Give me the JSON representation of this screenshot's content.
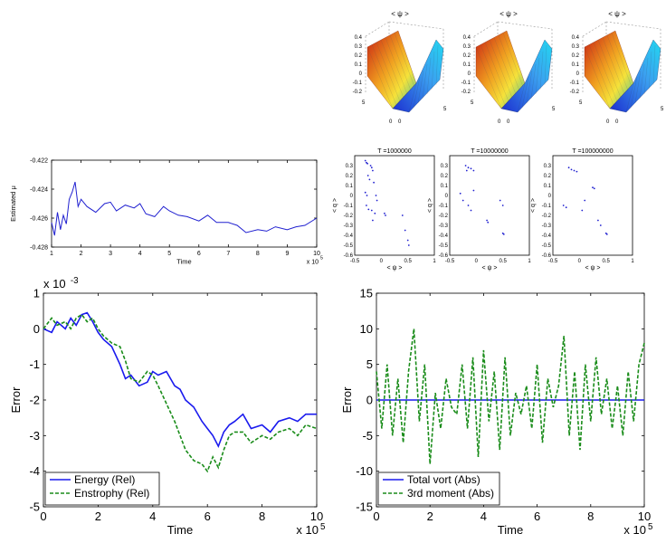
{
  "chart_data": [
    {
      "id": "surface_plots",
      "type": "surface",
      "panels": [
        {
          "title": "< ψ >",
          "z_ticks": [
            "0.4",
            "0.3",
            "0.2",
            "0.1",
            "0",
            "-0.1",
            "-0.2"
          ],
          "x_ticks": [
            "0",
            "5"
          ],
          "y_ticks": [
            "0",
            "5"
          ]
        },
        {
          "title": "< ψ >",
          "z_ticks": [
            "0.4",
            "0.3",
            "0.2",
            "0.1",
            "0",
            "-0.1",
            "-0.2"
          ],
          "x_ticks": [
            "0",
            "5"
          ],
          "y_ticks": [
            "0",
            "5"
          ]
        },
        {
          "title": "< ψ >",
          "z_ticks": [
            "0.4",
            "0.3",
            "0.2",
            "0.1",
            "0",
            "-0.1",
            "-0.2"
          ],
          "x_ticks": [
            "0",
            "5"
          ],
          "y_ticks": [
            "0",
            "5"
          ]
        }
      ],
      "colors": {
        "high": "#c81e12",
        "mid": "#f5e23a",
        "low": "#1c2fd0",
        "peak": "#23d7f0"
      }
    },
    {
      "id": "mu_estimate",
      "type": "line",
      "title": "",
      "ylabel": "Estimated μ",
      "xlabel": "Time",
      "x_multiplier": "x 10",
      "x_exponent": "5",
      "xlim": [
        1,
        10
      ],
      "ylim": [
        -0.428,
        -0.422
      ],
      "x_ticks": [
        "1",
        "2",
        "3",
        "4",
        "5",
        "6",
        "7",
        "8",
        "9",
        "10"
      ],
      "y_ticks": [
        "-0.422",
        "-0.424",
        "-0.426",
        "-0.428"
      ],
      "series": [
        {
          "name": "mu",
          "color": "#2020d0",
          "x": [
            1.0,
            1.1,
            1.2,
            1.3,
            1.4,
            1.5,
            1.6,
            1.7,
            1.8,
            1.9,
            2.0,
            2.2,
            2.5,
            2.8,
            3.0,
            3.2,
            3.5,
            3.8,
            4.0,
            4.2,
            4.5,
            4.8,
            5.0,
            5.3,
            5.6,
            6.0,
            6.3,
            6.6,
            7.0,
            7.3,
            7.6,
            8.0,
            8.3,
            8.6,
            9.0,
            9.3,
            9.6,
            10.0
          ],
          "values": [
            -0.4263,
            -0.4272,
            -0.4256,
            -0.4268,
            -0.4258,
            -0.4264,
            -0.4247,
            -0.4242,
            -0.4235,
            -0.4252,
            -0.4247,
            -0.4252,
            -0.4256,
            -0.425,
            -0.4249,
            -0.4255,
            -0.4251,
            -0.4253,
            -0.425,
            -0.4257,
            -0.4259,
            -0.4252,
            -0.4255,
            -0.4258,
            -0.4259,
            -0.4262,
            -0.4258,
            -0.4263,
            -0.4263,
            -0.4265,
            -0.427,
            -0.4268,
            -0.4269,
            -0.4266,
            -0.4268,
            -0.4266,
            -0.4265,
            -0.426
          ]
        }
      ]
    },
    {
      "id": "scatter_panels",
      "type": "scatter",
      "xlabel": "< ψ >",
      "ylabel": "< q >",
      "xlim": [
        -0.5,
        1
      ],
      "ylim": [
        -0.6,
        0.4
      ],
      "x_ticks": [
        "-0.5",
        "0",
        "0.5",
        "1"
      ],
      "y_ticks": [
        "0.3",
        "0.2",
        "0.1",
        "0",
        "-0.1",
        "-0.2",
        "-0.3",
        "-0.4",
        "-0.5",
        "-0.6"
      ],
      "panels": [
        {
          "title": "T =1000000",
          "points": [
            [
              -0.3,
              0.35
            ],
            [
              -0.28,
              0.33
            ],
            [
              -0.26,
              0.32
            ],
            [
              -0.2,
              0.3
            ],
            [
              -0.18,
              0.28
            ],
            [
              -0.16,
              0.25
            ],
            [
              -0.25,
              0.2
            ],
            [
              -0.22,
              0.16
            ],
            [
              -0.14,
              0.13
            ],
            [
              -0.3,
              0.03
            ],
            [
              -0.27,
              0.0
            ],
            [
              -0.1,
              0.0
            ],
            [
              -0.08,
              -0.05
            ],
            [
              -0.28,
              -0.1
            ],
            [
              -0.24,
              -0.14
            ],
            [
              -0.18,
              -0.15
            ],
            [
              -0.12,
              -0.18
            ],
            [
              0.06,
              -0.18
            ],
            [
              0.08,
              -0.2
            ],
            [
              -0.16,
              -0.25
            ],
            [
              0.4,
              -0.2
            ],
            [
              0.45,
              -0.35
            ],
            [
              0.5,
              -0.45
            ],
            [
              0.52,
              -0.5
            ]
          ]
        },
        {
          "title": "T =10000000",
          "points": [
            [
              -0.2,
              0.3
            ],
            [
              -0.15,
              0.28
            ],
            [
              -0.18,
              0.25
            ],
            [
              -0.1,
              0.27
            ],
            [
              -0.05,
              0.25
            ],
            [
              -0.3,
              0.02
            ],
            [
              -0.25,
              -0.05
            ],
            [
              -0.05,
              0.05
            ],
            [
              -0.15,
              -0.1
            ],
            [
              -0.1,
              -0.15
            ],
            [
              0.45,
              -0.05
            ],
            [
              0.5,
              -0.1
            ],
            [
              0.2,
              -0.25
            ],
            [
              0.22,
              -0.27
            ],
            [
              0.5,
              -0.38
            ],
            [
              0.52,
              -0.39
            ]
          ]
        },
        {
          "title": "T =100000000",
          "points": [
            [
              -0.2,
              0.28
            ],
            [
              -0.15,
              0.26
            ],
            [
              -0.1,
              0.25
            ],
            [
              -0.05,
              0.24
            ],
            [
              0.25,
              0.08
            ],
            [
              0.28,
              0.07
            ],
            [
              -0.3,
              -0.1
            ],
            [
              -0.25,
              -0.12
            ],
            [
              0.05,
              -0.15
            ],
            [
              0.1,
              -0.05
            ],
            [
              0.35,
              -0.25
            ],
            [
              0.4,
              -0.3
            ],
            [
              0.5,
              -0.38
            ],
            [
              0.52,
              -0.39
            ]
          ]
        }
      ]
    },
    {
      "id": "energy_enstrophy",
      "type": "line",
      "xlabel": "Time",
      "ylabel": "Error",
      "y_multiplier": "x 10",
      "y_exponent": "-3",
      "x_multiplier": "x 10",
      "x_exponent": "5",
      "xlim": [
        0,
        10
      ],
      "ylim": [
        -5,
        1
      ],
      "x_ticks": [
        "0",
        "2",
        "4",
        "6",
        "8",
        "10"
      ],
      "y_ticks": [
        "1",
        "0",
        "-1",
        "-2",
        "-3",
        "-4",
        "-5"
      ],
      "legend": {
        "position": "bottom-left",
        "entries": [
          "Energy (Rel)",
          "Enstrophy (Rel)"
        ]
      },
      "series": [
        {
          "name": "Energy (Rel)",
          "color": "#1a1aee",
          "dash": "solid",
          "x": [
            0,
            0.3,
            0.5,
            0.8,
            1.0,
            1.2,
            1.4,
            1.6,
            1.8,
            2.0,
            2.2,
            2.5,
            2.8,
            3.0,
            3.2,
            3.5,
            3.8,
            4.0,
            4.2,
            4.5,
            4.8,
            5.0,
            5.2,
            5.5,
            5.8,
            6.0,
            6.2,
            6.4,
            6.6,
            6.8,
            7.0,
            7.3,
            7.6,
            8.0,
            8.3,
            8.6,
            9.0,
            9.3,
            9.6,
            10.0
          ],
          "values": [
            0,
            -0.1,
            0.2,
            0.0,
            0.3,
            0.1,
            0.4,
            0.45,
            0.2,
            -0.1,
            -0.3,
            -0.5,
            -1.0,
            -1.4,
            -1.3,
            -1.6,
            -1.5,
            -1.2,
            -1.3,
            -1.2,
            -1.6,
            -1.7,
            -2.0,
            -2.2,
            -2.6,
            -2.8,
            -3.0,
            -3.3,
            -2.9,
            -2.7,
            -2.6,
            -2.4,
            -2.8,
            -2.7,
            -2.9,
            -2.6,
            -2.5,
            -2.6,
            -2.4,
            -2.4
          ]
        },
        {
          "name": "Enstrophy (Rel)",
          "color": "#1a8c1a",
          "dash": "dashed",
          "x": [
            0,
            0.3,
            0.5,
            0.8,
            1.0,
            1.2,
            1.4,
            1.6,
            1.8,
            2.0,
            2.2,
            2.5,
            2.8,
            3.0,
            3.2,
            3.5,
            3.8,
            4.0,
            4.2,
            4.5,
            4.8,
            5.0,
            5.2,
            5.5,
            5.8,
            6.0,
            6.2,
            6.4,
            6.6,
            6.8,
            7.0,
            7.3,
            7.6,
            8.0,
            8.3,
            8.6,
            9.0,
            9.3,
            9.6,
            10.0
          ],
          "values": [
            0,
            0.3,
            0.1,
            0.2,
            0.0,
            0.3,
            0.4,
            0.2,
            0.3,
            0.0,
            -0.2,
            -0.4,
            -0.5,
            -0.9,
            -1.4,
            -1.5,
            -1.2,
            -1.3,
            -1.6,
            -2.1,
            -2.6,
            -3.0,
            -3.4,
            -3.7,
            -3.8,
            -4.0,
            -3.6,
            -3.9,
            -3.4,
            -3.0,
            -2.9,
            -2.9,
            -3.2,
            -3.0,
            -3.1,
            -2.9,
            -2.8,
            -3.0,
            -2.7,
            -2.8
          ]
        }
      ]
    },
    {
      "id": "vorticity_moment",
      "type": "line",
      "xlabel": "Time",
      "ylabel": "Error",
      "x_multiplier": "x 10",
      "x_exponent": "5",
      "xlim": [
        0,
        10
      ],
      "ylim": [
        -15,
        15
      ],
      "x_ticks": [
        "0",
        "2",
        "4",
        "6",
        "8",
        "10"
      ],
      "y_ticks": [
        "15",
        "10",
        "5",
        "0",
        "-5",
        "-10",
        "-15"
      ],
      "legend": {
        "position": "bottom-left",
        "entries": [
          "Total vort (Abs)",
          "3rd moment (Abs)"
        ]
      },
      "series": [
        {
          "name": "Total vort (Abs)",
          "color": "#1a1aee",
          "dash": "solid",
          "x": [
            0,
            10
          ],
          "values": [
            0,
            0
          ]
        },
        {
          "name": "3rd moment (Abs)",
          "color": "#1a8c1a",
          "dash": "dashed",
          "x": [
            0,
            0.2,
            0.4,
            0.6,
            0.8,
            1.0,
            1.2,
            1.4,
            1.6,
            1.8,
            2.0,
            2.2,
            2.4,
            2.6,
            2.8,
            3.0,
            3.2,
            3.4,
            3.6,
            3.8,
            4.0,
            4.2,
            4.4,
            4.6,
            4.8,
            5.0,
            5.2,
            5.4,
            5.6,
            5.8,
            6.0,
            6.2,
            6.4,
            6.6,
            6.8,
            7.0,
            7.2,
            7.4,
            7.6,
            7.8,
            8.0,
            8.2,
            8.4,
            8.6,
            8.8,
            9.0,
            9.2,
            9.4,
            9.6,
            9.8,
            10.0
          ],
          "values": [
            4,
            -4,
            5,
            -5,
            3,
            -6,
            4,
            10,
            -3,
            5,
            -9,
            1,
            -4,
            3,
            -1,
            -2,
            5,
            -4,
            6,
            -8,
            7,
            -3,
            4,
            -7,
            6,
            -5,
            1,
            -2,
            2,
            -4,
            5,
            -6,
            3,
            -1,
            2,
            9,
            -5,
            4,
            -7,
            5,
            -3,
            6,
            -2,
            3,
            -4,
            2,
            -5,
            4,
            -3,
            5,
            8
          ]
        }
      ]
    }
  ]
}
